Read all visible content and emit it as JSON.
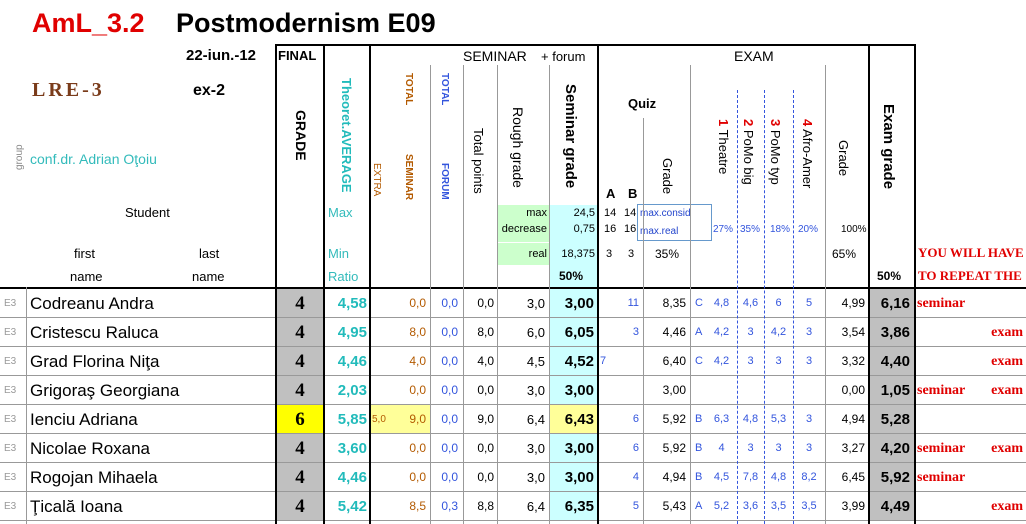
{
  "title": {
    "code": "AmL_3.2",
    "name": "Postmodernism E09"
  },
  "date": "22-iun.-12",
  "lre": "LRE-3",
  "ex": "ex-2",
  "teacher": "conf.dr. Adrian Oţoiu",
  "group_label": "group",
  "header": {
    "final": "FINAL",
    "seminar": "SEMINAR",
    "seminar_forum": "+ forum",
    "exam": "EXAM",
    "grade": "GRADE",
    "theoret": "Theoret.AVERAGE",
    "total1": "TOTAL",
    "extra": "EXTRA",
    "seminar_small": "SEMINAR",
    "total2": "TOTAL",
    "forum": "FORUM",
    "total_points": "Total points",
    "rough_grade": "Rough grade",
    "seminar_grade": "Seminar grade",
    "quiz": "Quiz",
    "quiz_a": "A",
    "quiz_b": "B",
    "quiz_grade": "Grade",
    "q1_num": "1",
    "q1_text": " Theatre",
    "q2_num": "2",
    "q2_text": " PoMo big",
    "q3_num": "3",
    "q3_text": " PoMo typ",
    "q4_num": "4",
    "q4_text": " Afro-Amer",
    "exam_subgrade": "Grade",
    "exam_grade": "Exam grade",
    "student": "Student",
    "first": "first",
    "last": "last",
    "name1": "name",
    "name2": "name",
    "max": "Max",
    "min": "Min",
    "ratio": "Ratio",
    "max_label": "max",
    "max_val": "24,5",
    "decrease_label": "decrease",
    "decrease_val": "0,75",
    "real_label": "real",
    "real_val": "18,375",
    "pct50_sem": "50%",
    "qa_max": "14",
    "qb_max": "14",
    "qa_real": "16",
    "qb_real": "16",
    "qa_min": "3",
    "qb_min": "3",
    "max_consid": "max.consid",
    "max_real": "max.real",
    "quiz_pct": "35%",
    "p1": "27%",
    "p2": "35%",
    "p3": "18%",
    "p4": "20%",
    "pct100": "100%",
    "pct65": "65%",
    "pct50_exam": "50%",
    "repeat1": "YOU WILL HAVE",
    "repeat2": "TO REPEAT THE"
  },
  "rows": [
    {
      "group": "E3",
      "first": "Codreanu Andra",
      "grade": "4",
      "avg": "4,58",
      "extra": "",
      "sem": "0,0",
      "forum": "0,0",
      "total": "0,0",
      "rough": "3,0",
      "sgrade": "3,00",
      "qa": "",
      "qb": "11",
      "qgrade": "8,35",
      "letter": "C",
      "e1": "4,8",
      "e2": "4,6",
      "e3": "6",
      "e4": "5",
      "egrade": "4,99",
      "exam": "6,16",
      "repeat_a": "seminar",
      "repeat_b": ""
    },
    {
      "group": "E3",
      "first": "Cristescu Raluca",
      "grade": "4",
      "avg": "4,95",
      "extra": "",
      "sem": "8,0",
      "forum": "0,0",
      "total": "8,0",
      "rough": "6,0",
      "sgrade": "6,05",
      "qa": "",
      "qb": "3",
      "qgrade": "4,46",
      "letter": "A",
      "e1": "4,2",
      "e2": "3",
      "e3": "4,2",
      "e4": "3",
      "egrade": "3,54",
      "exam": "3,86",
      "repeat_a": "",
      "repeat_b": "exam"
    },
    {
      "group": "E3",
      "first": "Grad Florina Niţa",
      "grade": "4",
      "avg": "4,46",
      "extra": "",
      "sem": "4,0",
      "forum": "0,0",
      "total": "4,0",
      "rough": "4,5",
      "sgrade": "4,52",
      "qa": "7",
      "qb": "",
      "qgrade": "6,40",
      "letter": "C",
      "e1": "4,2",
      "e2": "3",
      "e3": "3",
      "e4": "3",
      "egrade": "3,32",
      "exam": "4,40",
      "repeat_a": "",
      "repeat_b": "exam"
    },
    {
      "group": "E3",
      "first": "Grigoraş Georgiana",
      "grade": "4",
      "avg": "2,03",
      "extra": "",
      "sem": "0,0",
      "forum": "0,0",
      "total": "0,0",
      "rough": "3,0",
      "sgrade": "3,00",
      "qa": "",
      "qb": "",
      "qgrade": "3,00",
      "letter": "",
      "e1": "",
      "e2": "",
      "e3": "",
      "e4": "",
      "egrade": "0,00",
      "exam": "1,05",
      "repeat_a": "seminar",
      "repeat_b": "exam"
    },
    {
      "group": "E3",
      "first": "Ienciu Adriana",
      "grade": "6",
      "avg": "5,85",
      "extra": "5,0",
      "sem": "9,0",
      "forum": "0,0",
      "total": "9,0",
      "rough": "6,4",
      "sgrade": "6,43",
      "qa": "",
      "qb": "6",
      "qgrade": "5,92",
      "letter": "B",
      "e1": "6,3",
      "e2": "4,8",
      "e3": "5,3",
      "e4": "3",
      "egrade": "4,94",
      "exam": "5,28",
      "repeat_a": "",
      "repeat_b": ""
    },
    {
      "group": "E3",
      "first": "Nicolae Roxana",
      "grade": "4",
      "avg": "3,60",
      "extra": "",
      "sem": "0,0",
      "forum": "0,0",
      "total": "0,0",
      "rough": "3,0",
      "sgrade": "3,00",
      "qa": "",
      "qb": "6",
      "qgrade": "5,92",
      "letter": "B",
      "e1": "4",
      "e2": "3",
      "e3": "3",
      "e4": "3",
      "egrade": "3,27",
      "exam": "4,20",
      "repeat_a": "seminar",
      "repeat_b": "exam"
    },
    {
      "group": "E3",
      "first": "Rogojan Mihaela",
      "grade": "4",
      "avg": "4,46",
      "extra": "",
      "sem": "0,0",
      "forum": "0,0",
      "total": "0,0",
      "rough": "3,0",
      "sgrade": "3,00",
      "qa": "",
      "qb": "4",
      "qgrade": "4,94",
      "letter": "B",
      "e1": "4,5",
      "e2": "7,8",
      "e3": "4,8",
      "e4": "8,2",
      "egrade": "6,45",
      "exam": "5,92",
      "repeat_a": "seminar",
      "repeat_b": ""
    },
    {
      "group": "E3",
      "first": "Ţicală Ioana",
      "grade": "4",
      "avg": "5,42",
      "extra": "",
      "sem": "8,5",
      "forum": "0,3",
      "total": "8,8",
      "rough": "6,4",
      "sgrade": "6,35",
      "qa": "",
      "qb": "5",
      "qgrade": "5,43",
      "letter": "A",
      "e1": "5,2",
      "e2": "3,6",
      "e3": "3,5",
      "e4": "3,5",
      "egrade": "3,99",
      "exam": "4,49",
      "repeat_a": "",
      "repeat_b": "exam"
    }
  ],
  "colors": {
    "title_red": "#e00000",
    "grade_gray": "#c0c0c0",
    "highlight_yellow": "#ffff00",
    "seminar_cyan": "#ccffff",
    "green_cell": "#ccffcc",
    "cream": "#ffff99"
  }
}
